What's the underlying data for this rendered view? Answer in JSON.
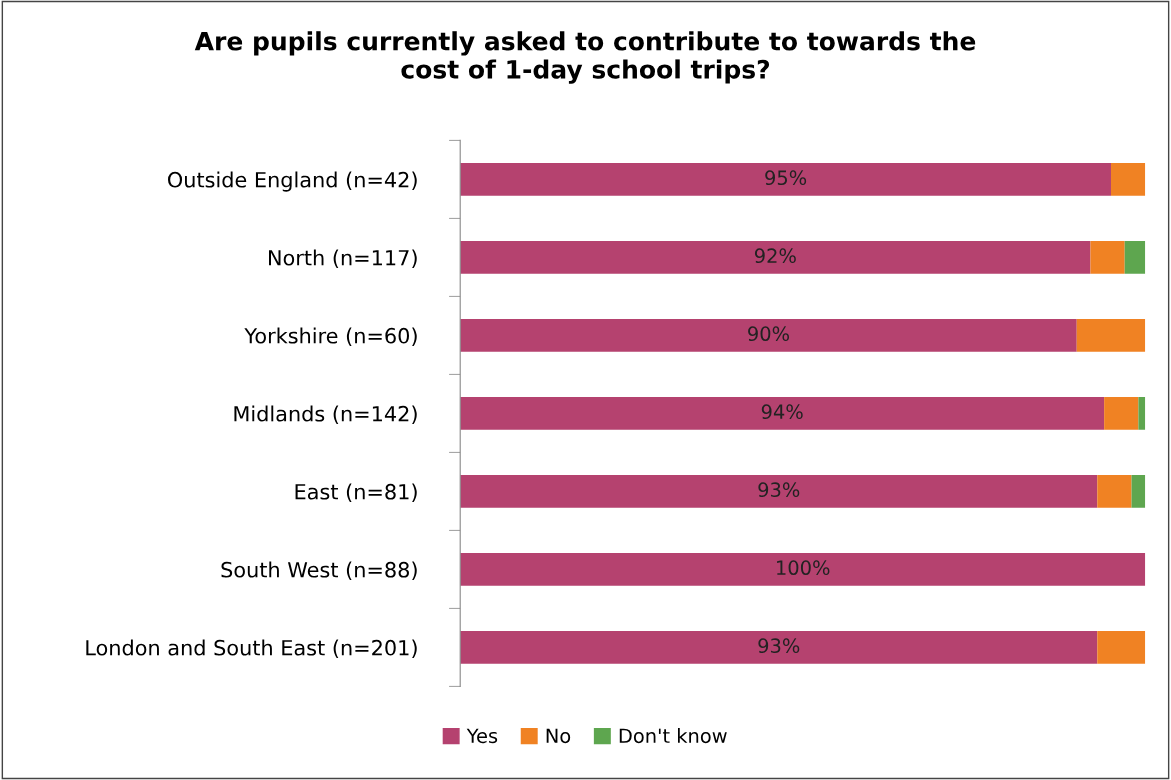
{
  "chart_data": {
    "type": "bar",
    "orientation": "horizontal",
    "stacked": true,
    "title": "Are pupils currently asked to contribute to towards the\ncost of 1-day school trips?",
    "categories": [
      "Outside England (n=42)",
      "North (n=117)",
      "Yorkshire (n=60)",
      "Midlands (n=142)",
      "East (n=81)",
      "South West (n=88)",
      "London and South East (n=201)"
    ],
    "series": [
      {
        "name": "Yes",
        "color": "#b5426f",
        "values": [
          95,
          92,
          90,
          94,
          93,
          100,
          93
        ],
        "value_labels": [
          "95%",
          "92%",
          "90%",
          "94%",
          "93%",
          "100%",
          "93%"
        ]
      },
      {
        "name": "No",
        "color": "#f08223",
        "values": [
          5,
          5,
          10,
          5,
          5,
          0,
          7
        ]
      },
      {
        "name": "Don't know",
        "color": "#5ea64f",
        "values": [
          0,
          3,
          0,
          1,
          2,
          0,
          0
        ]
      }
    ],
    "legend": "bottom",
    "grid": false
  }
}
